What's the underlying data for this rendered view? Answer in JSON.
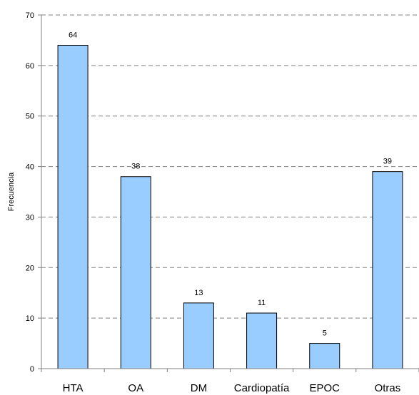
{
  "chart_data": {
    "type": "bar",
    "categories": [
      "HTA",
      "OA",
      "DM",
      "Cardiopatía",
      "EPOC",
      "Otras"
    ],
    "values": [
      64,
      38,
      13,
      11,
      5,
      39
    ],
    "title": "",
    "xlabel": "",
    "ylabel": "Frecuencia",
    "ylim": [
      0,
      70
    ],
    "yticks": [
      0,
      10,
      20,
      30,
      40,
      50,
      60,
      70
    ],
    "data_labels": true,
    "grid": "horizontal-dashed",
    "legend": "none",
    "colors": {
      "bar_fill": "#99ccff",
      "bar_stroke": "#000000",
      "gridline": "#808080",
      "axis": "#808080"
    }
  }
}
